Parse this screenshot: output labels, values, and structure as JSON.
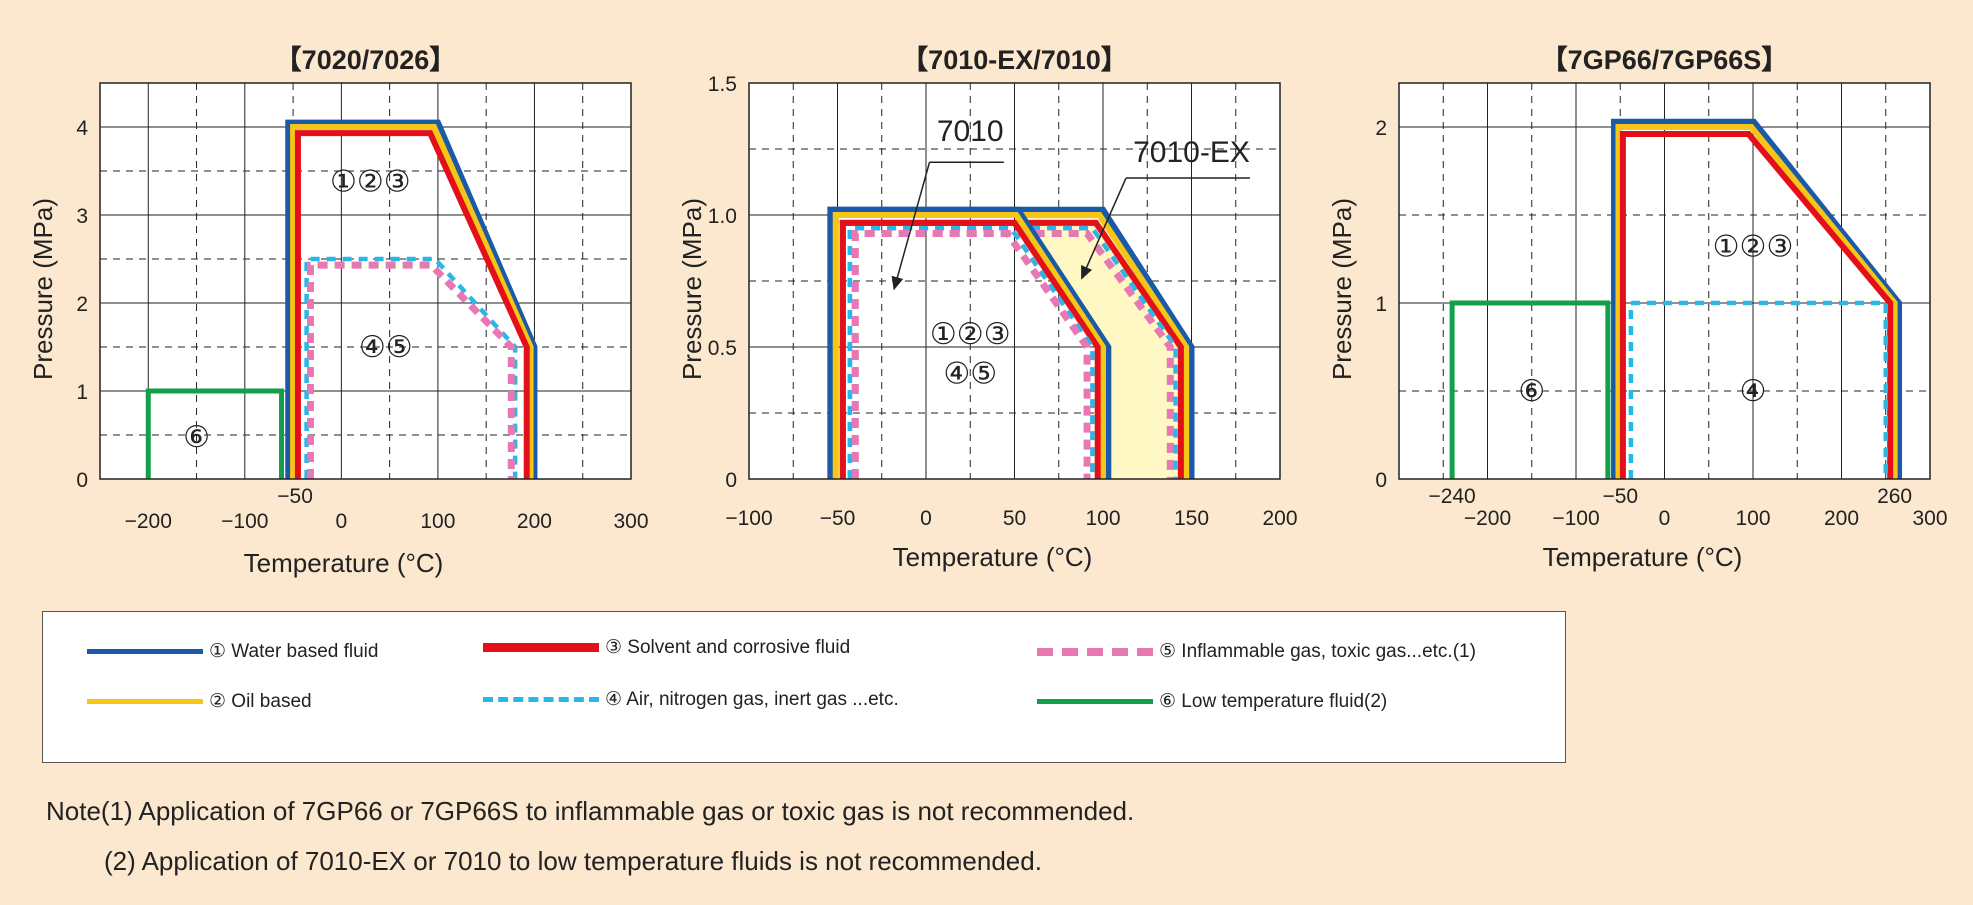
{
  "colors": {
    "background": "#fbe8cf",
    "water": "#1a5aa8",
    "oil": "#f5c518",
    "solvent": "#e3101b",
    "air": "#29b7e8",
    "gas": "#e878b4",
    "low_temp": "#12a04a",
    "ex_fill": "#fff8c4"
  },
  "chart_data": [
    {
      "type": "line",
      "title": "【7020/7026】",
      "xlabel": "Temperature (°C)",
      "ylabel": "Pressure (MPa)",
      "xlim": [
        -250,
        300
      ],
      "ylim": [
        0,
        4.5
      ],
      "xticks": [
        "−200",
        "−100",
        "0",
        "100",
        "200",
        "300"
      ],
      "xtick_values": [
        -200,
        -100,
        0,
        100,
        200,
        300
      ],
      "yticks": [
        "0",
        "1",
        "2",
        "3",
        "4"
      ],
      "ytick_values": [
        0,
        1,
        2,
        3,
        4
      ],
      "extra_xtick": {
        "value": -50,
        "label": "−50"
      },
      "grid": true,
      "series": [
        {
          "key": "water",
          "x": [
            -55,
            -55,
            100,
            200,
            200
          ],
          "y": [
            0,
            4.05,
            4.05,
            1.5,
            0
          ]
        },
        {
          "key": "oil",
          "x": [
            -50,
            -50,
            96,
            196,
            196
          ],
          "y": [
            0,
            4.0,
            4.0,
            1.5,
            0
          ]
        },
        {
          "key": "solvent",
          "x": [
            -45,
            -45,
            92,
            192,
            192
          ],
          "y": [
            0,
            3.93,
            3.93,
            1.5,
            0
          ]
        },
        {
          "key": "air",
          "x": [
            -36,
            -36,
            97,
            180,
            180
          ],
          "y": [
            0,
            2.5,
            2.5,
            1.5,
            0
          ]
        },
        {
          "key": "gas",
          "x": [
            -32,
            -32,
            93,
            176,
            176
          ],
          "y": [
            0,
            2.43,
            2.43,
            1.5,
            0
          ]
        },
        {
          "key": "low_temp",
          "x": [
            -200,
            -200,
            -62,
            -62
          ],
          "y": [
            0,
            1.0,
            1.0,
            0
          ]
        }
      ],
      "annotations": [
        {
          "text": "①②③",
          "x": 30,
          "y": 3.38
        },
        {
          "text": "④⑤",
          "x": 46,
          "y": 1.5
        },
        {
          "text": "⑥",
          "x": -150,
          "y": 0.48
        }
      ]
    },
    {
      "type": "line",
      "title": "【7010-EX/7010】",
      "xlabel": "Temperature (°C)",
      "ylabel": "Pressure (MPa)",
      "xlim": [
        -100,
        200
      ],
      "ylim": [
        0,
        1.5
      ],
      "xticks": [
        "−100",
        "−50",
        "0",
        "50",
        "100",
        "150",
        "200"
      ],
      "xtick_values": [
        -100,
        -50,
        0,
        50,
        100,
        150,
        200
      ],
      "yticks": [
        "0",
        "0.5",
        "1.0",
        "1.5"
      ],
      "ytick_values": [
        0,
        0.5,
        1.0,
        1.5
      ],
      "grid": true,
      "series": [
        {
          "key": "water",
          "x": [
            -54,
            -54,
            100,
            150,
            150
          ],
          "y": [
            0,
            1.02,
            1.02,
            0.5,
            0
          ]
        },
        {
          "key": "oil",
          "x": [
            -51,
            -51,
            98,
            147,
            147
          ],
          "y": [
            0,
            1.0,
            1.0,
            0.5,
            0
          ]
        },
        {
          "key": "solvent",
          "x": [
            -47,
            -47,
            96,
            144,
            144
          ],
          "y": [
            0,
            0.97,
            0.97,
            0.5,
            0
          ]
        },
        {
          "key": "air",
          "x": [
            -43,
            -43,
            94,
            141,
            141
          ],
          "y": [
            0,
            0.95,
            0.95,
            0.5,
            0
          ]
        },
        {
          "key": "gas",
          "x": [
            -40,
            -40,
            91,
            138,
            138
          ],
          "y": [
            0,
            0.93,
            0.93,
            0.5,
            0
          ]
        },
        {
          "key": "water",
          "x": [
            -54,
            -54,
            52,
            103,
            103
          ],
          "y": [
            0,
            1.02,
            1.02,
            0.5,
            0
          ]
        },
        {
          "key": "oil",
          "x": [
            -51,
            -51,
            51,
            100,
            100
          ],
          "y": [
            0,
            1.0,
            1.0,
            0.5,
            0
          ]
        },
        {
          "key": "solvent",
          "x": [
            -47,
            -47,
            50,
            97,
            97
          ],
          "y": [
            0,
            0.97,
            0.97,
            0.5,
            0
          ]
        },
        {
          "key": "air",
          "x": [
            -43,
            -43,
            48,
            94,
            94
          ],
          "y": [
            0,
            0.95,
            0.95,
            0.5,
            0
          ]
        },
        {
          "key": "gas",
          "x": [
            -40,
            -40,
            46,
            91,
            91
          ],
          "y": [
            0,
            0.93,
            0.93,
            0.5,
            0
          ]
        }
      ],
      "fill_region": {
        "x": [
          52,
          98,
          147,
          147,
          97,
          97
        ],
        "y": [
          1.0,
          1.0,
          0.5,
          0,
          0,
          0.5
        ]
      },
      "annotations": [
        {
          "text": "①②③",
          "x": 25,
          "y": 0.55
        },
        {
          "text": "④⑤",
          "x": 25,
          "y": 0.4
        }
      ],
      "callouts": [
        {
          "text": "7010",
          "label_x": 25,
          "label_y": 1.28,
          "line": [
            [
              44,
              1.2
            ],
            [
              2,
              1.2
            ]
          ],
          "arrow_from": [
            2,
            1.2
          ],
          "arrow_to": [
            -18,
            0.72
          ]
        },
        {
          "text": "7010-EX",
          "label_x": 150,
          "label_y": 1.2,
          "line": [
            [
              183,
              1.14
            ],
            [
              113,
              1.14
            ]
          ],
          "arrow_from": [
            113,
            1.14
          ],
          "arrow_to": [
            88,
            0.76
          ]
        }
      ]
    },
    {
      "type": "line",
      "title": "【7GP66/7GP66S】",
      "xlabel": "Temperature (°C)",
      "ylabel": "Pressure (MPa)",
      "xlim": [
        -300,
        300
      ],
      "ylim": [
        0,
        2.25
      ],
      "xticks": [
        "−200",
        "−100",
        "0",
        "200",
        "300"
      ],
      "xtick_values": [
        -200,
        -100,
        0,
        200,
        300
      ],
      "tick_label_100": {
        "value": 100,
        "label": "100"
      },
      "yticks": [
        "0",
        "1",
        "2"
      ],
      "ytick_values": [
        0,
        1,
        2
      ],
      "extra_xticks": [
        {
          "value": -240,
          "label": "−240"
        },
        {
          "value": -50,
          "label": "−50"
        },
        {
          "value": 260,
          "label": "260"
        }
      ],
      "grid": true,
      "series": [
        {
          "key": "water",
          "x": [
            -57,
            -57,
            101,
            265,
            265
          ],
          "y": [
            0,
            2.03,
            2.03,
            1.0,
            0
          ]
        },
        {
          "key": "oil",
          "x": [
            -52,
            -52,
            98,
            260,
            260
          ],
          "y": [
            0,
            2.0,
            2.0,
            1.0,
            0
          ]
        },
        {
          "key": "solvent",
          "x": [
            -47,
            -47,
            95,
            255,
            255
          ],
          "y": [
            0,
            1.96,
            1.96,
            1.0,
            0
          ]
        },
        {
          "key": "air",
          "x": [
            -38,
            -38,
            250,
            250
          ],
          "y": [
            0,
            1.0,
            1.0,
            0
          ]
        },
        {
          "key": "low_temp",
          "x": [
            -240,
            -240,
            -64,
            -64
          ],
          "y": [
            0,
            1.0,
            1.0,
            0
          ]
        }
      ],
      "annotations": [
        {
          "text": "①②③",
          "x": 100,
          "y": 1.32
        },
        {
          "text": "④",
          "x": 100,
          "y": 0.5
        },
        {
          "text": "⑥",
          "x": -150,
          "y": 0.5
        }
      ]
    }
  ],
  "legend": {
    "items": [
      {
        "key": "water",
        "label": "① Water based fluid",
        "style": "solid"
      },
      {
        "key": "oil",
        "label": "② Oil based",
        "style": "solid"
      },
      {
        "key": "solvent",
        "label": "③ Solvent and corrosive fluid",
        "style": "solid"
      },
      {
        "key": "air",
        "label": "④ Air, nitrogen gas, inert gas ...etc.",
        "style": "dashed"
      },
      {
        "key": "gas",
        "label": "⑤ Inflammable gas, toxic gas...etc.(1)",
        "style": "dashed"
      },
      {
        "key": "low_temp",
        "label": "⑥ Low temperature fluid(2)",
        "style": "solid"
      }
    ]
  },
  "notes": {
    "note1": "Note(1) Application of 7GP66 or 7GP66S to inflammable gas or toxic gas is not recommended.",
    "note2": "(2) Application of 7010-EX or 7010 to  low temperature fluids is not recommended."
  }
}
